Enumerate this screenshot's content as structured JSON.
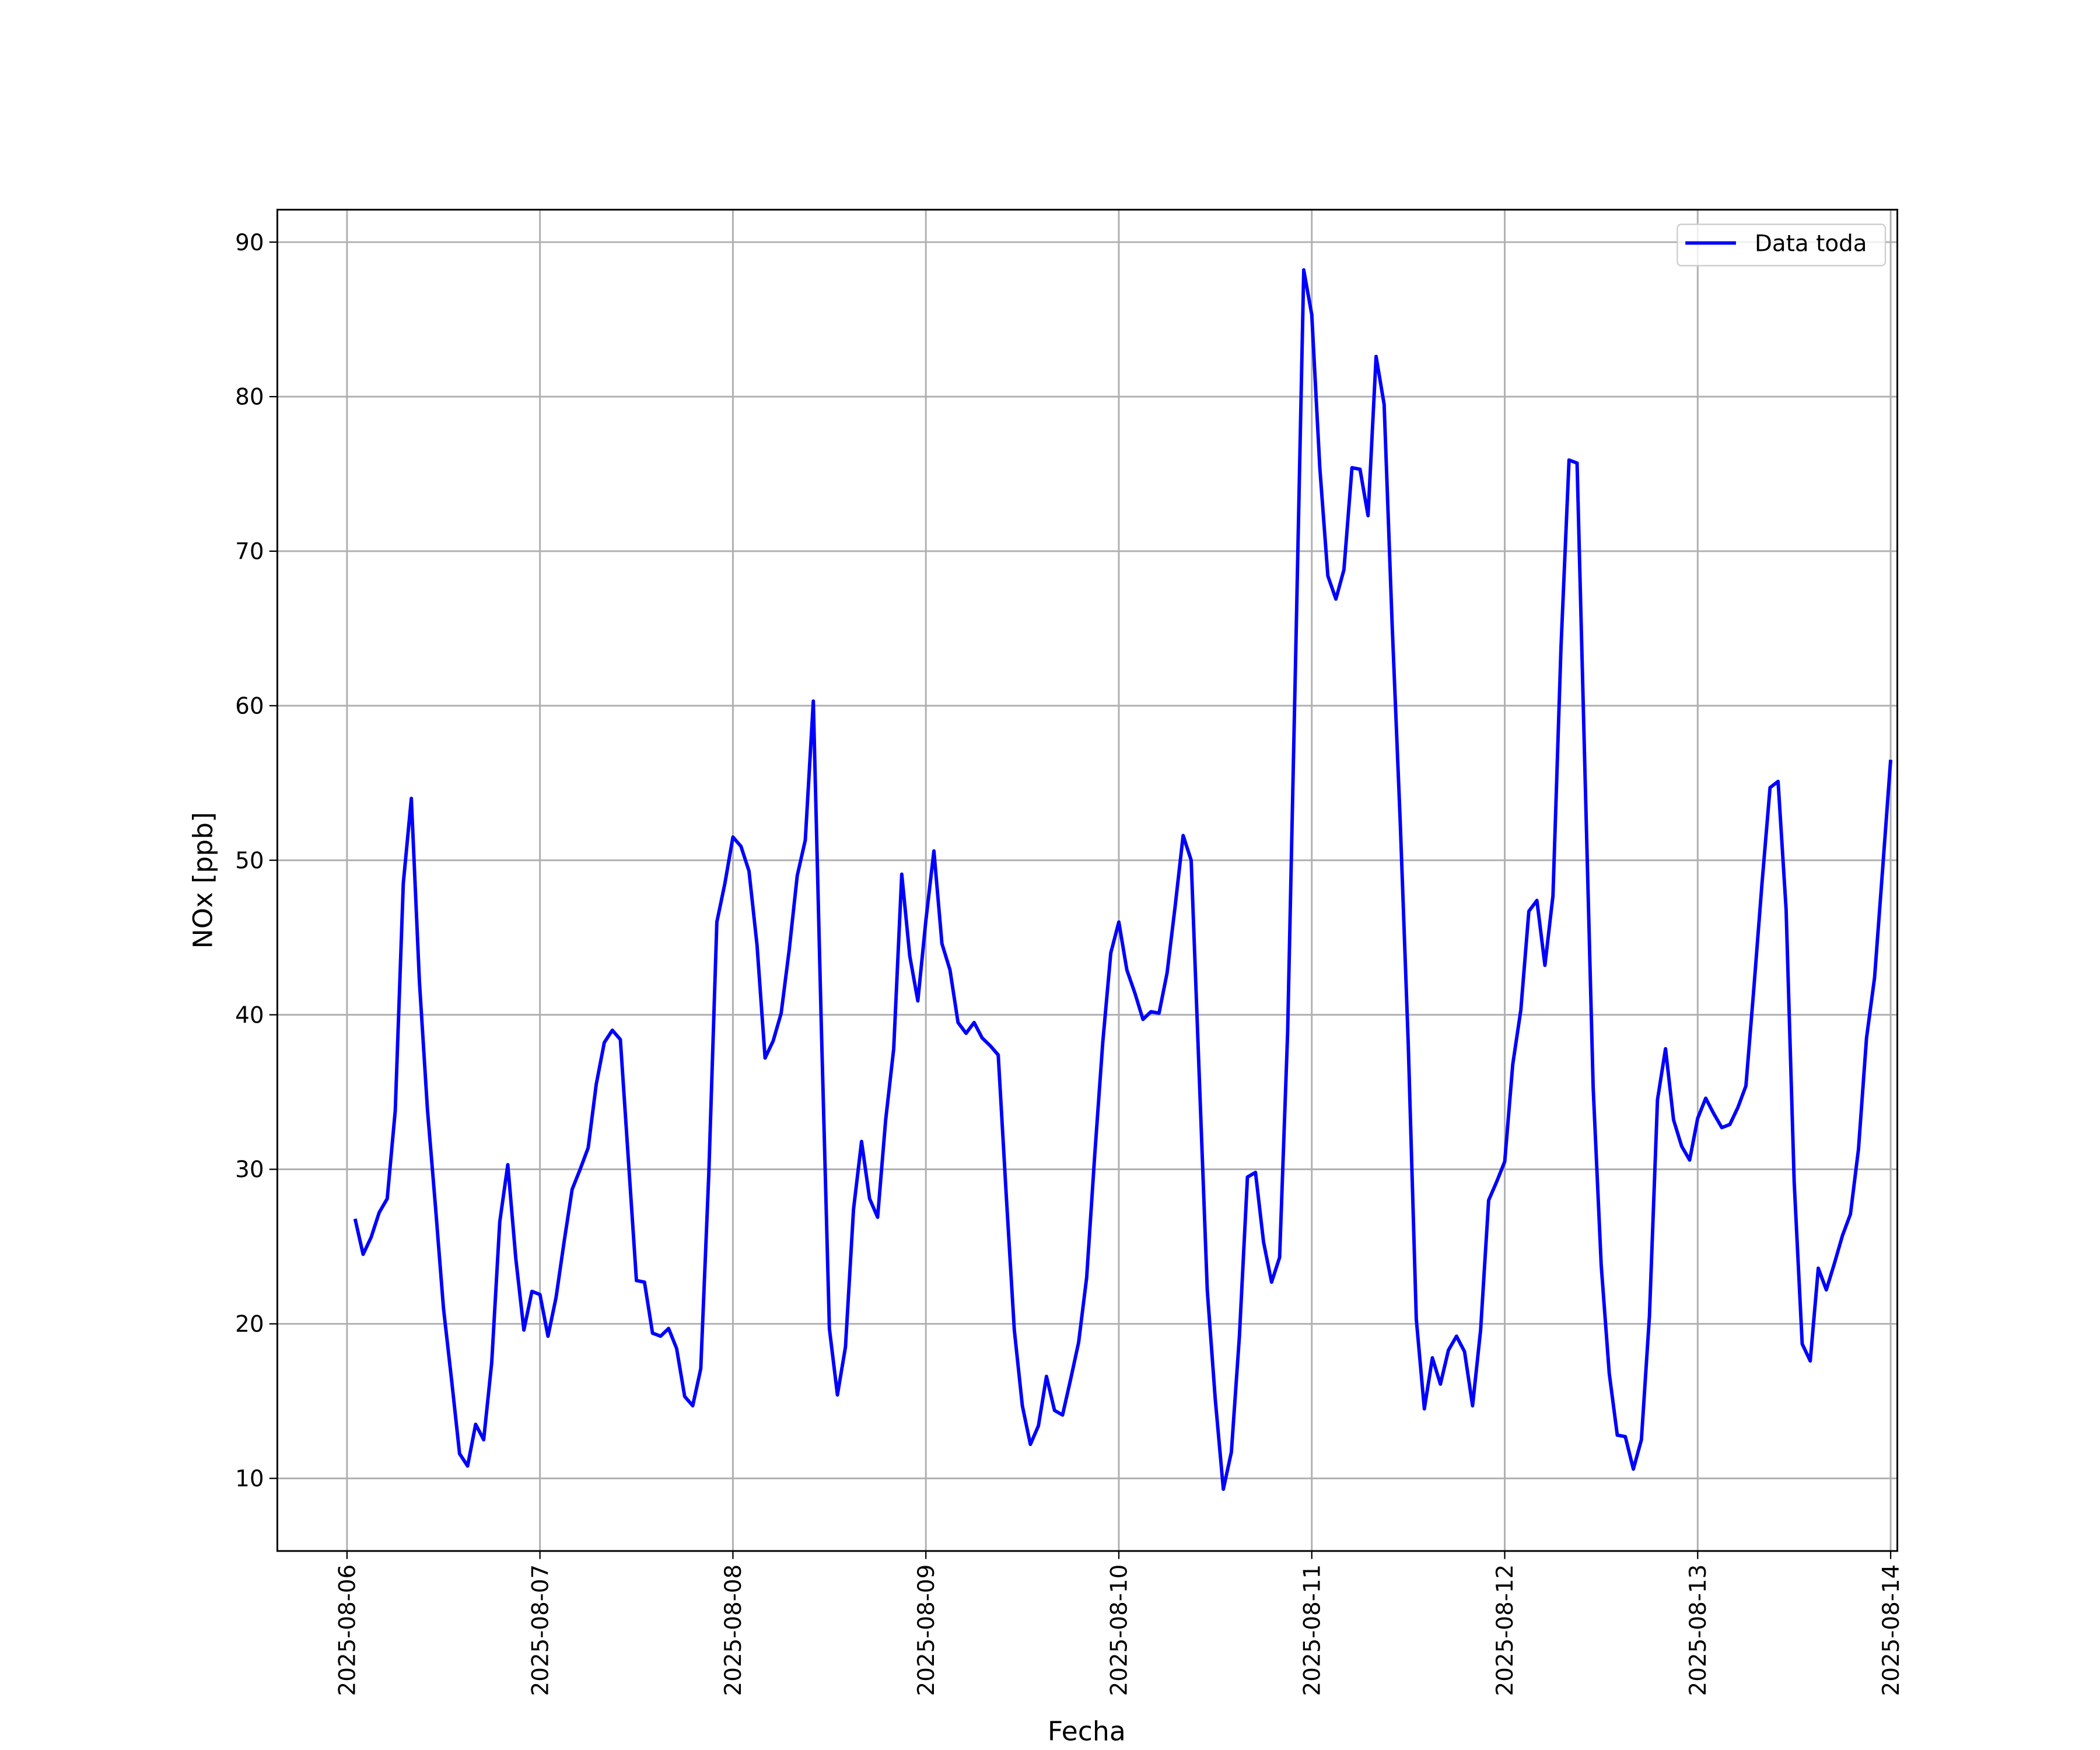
{
  "chart_data": {
    "type": "line",
    "x_label": "Fecha",
    "y_label": "NOx [ppb]",
    "xlim": [
      "2025-08-05 15:20",
      "2025-08-14 00:50"
    ],
    "xticks": [
      "2025-08-06",
      "2025-08-07",
      "2025-08-08",
      "2025-08-09",
      "2025-08-10",
      "2025-08-11",
      "2025-08-12",
      "2025-08-13",
      "2025-08-14"
    ],
    "ylim": [
      5.3,
      92.1
    ],
    "yticks": [
      10,
      20,
      30,
      40,
      50,
      60,
      70,
      80,
      90
    ],
    "grid": true,
    "legend": "upper right",
    "x": [
      "2025-08-06 01:00",
      "2025-08-06 02:00",
      "2025-08-06 03:00",
      "2025-08-06 04:00",
      "2025-08-06 05:00",
      "2025-08-06 06:00",
      "2025-08-06 07:00",
      "2025-08-06 08:00",
      "2025-08-06 09:00",
      "2025-08-06 10:00",
      "2025-08-06 11:00",
      "2025-08-06 12:00",
      "2025-08-06 13:00",
      "2025-08-06 14:00",
      "2025-08-06 15:00",
      "2025-08-06 16:00",
      "2025-08-06 17:00",
      "2025-08-06 18:00",
      "2025-08-06 19:00",
      "2025-08-06 20:00",
      "2025-08-06 21:00",
      "2025-08-06 22:00",
      "2025-08-06 23:00",
      "2025-08-07 00:00",
      "2025-08-07 01:00",
      "2025-08-07 02:00",
      "2025-08-07 03:00",
      "2025-08-07 04:00",
      "2025-08-07 05:00",
      "2025-08-07 06:00",
      "2025-08-07 07:00",
      "2025-08-07 08:00",
      "2025-08-07 09:00",
      "2025-08-07 10:00",
      "2025-08-07 11:00",
      "2025-08-07 12:00",
      "2025-08-07 13:00",
      "2025-08-07 14:00",
      "2025-08-07 15:00",
      "2025-08-07 16:00",
      "2025-08-07 17:00",
      "2025-08-07 18:00",
      "2025-08-07 19:00",
      "2025-08-07 20:00",
      "2025-08-07 21:00",
      "2025-08-07 22:00",
      "2025-08-07 23:00",
      "2025-08-08 00:00",
      "2025-08-08 01:00",
      "2025-08-08 02:00",
      "2025-08-08 03:00",
      "2025-08-08 04:00",
      "2025-08-08 05:00",
      "2025-08-08 06:00",
      "2025-08-08 07:00",
      "2025-08-08 08:00",
      "2025-08-08 09:00",
      "2025-08-08 10:00",
      "2025-08-08 11:00",
      "2025-08-08 12:00",
      "2025-08-08 13:00",
      "2025-08-08 14:00",
      "2025-08-08 15:00",
      "2025-08-08 16:00",
      "2025-08-08 17:00",
      "2025-08-08 18:00",
      "2025-08-08 19:00",
      "2025-08-08 20:00",
      "2025-08-08 21:00",
      "2025-08-08 22:00",
      "2025-08-08 23:00",
      "2025-08-09 00:00",
      "2025-08-09 01:00",
      "2025-08-09 02:00",
      "2025-08-09 03:00",
      "2025-08-09 04:00",
      "2025-08-09 05:00",
      "2025-08-09 06:00",
      "2025-08-09 07:00",
      "2025-08-09 08:00",
      "2025-08-09 09:00",
      "2025-08-09 10:00",
      "2025-08-09 11:00",
      "2025-08-09 12:00",
      "2025-08-09 13:00",
      "2025-08-09 14:00",
      "2025-08-09 15:00",
      "2025-08-09 16:00",
      "2025-08-09 17:00",
      "2025-08-09 18:00",
      "2025-08-09 19:00",
      "2025-08-09 20:00",
      "2025-08-09 21:00",
      "2025-08-09 22:00",
      "2025-08-09 23:00",
      "2025-08-10 00:00",
      "2025-08-10 01:00",
      "2025-08-10 02:00",
      "2025-08-10 03:00",
      "2025-08-10 04:00",
      "2025-08-10 05:00",
      "2025-08-10 06:00",
      "2025-08-10 07:00",
      "2025-08-10 08:00",
      "2025-08-10 09:00",
      "2025-08-10 10:00",
      "2025-08-10 11:00",
      "2025-08-10 12:00",
      "2025-08-10 13:00",
      "2025-08-10 14:00",
      "2025-08-10 15:00",
      "2025-08-10 16:00",
      "2025-08-10 17:00",
      "2025-08-10 18:00",
      "2025-08-10 19:00",
      "2025-08-10 20:00",
      "2025-08-10 21:00",
      "2025-08-10 22:00",
      "2025-08-10 23:00",
      "2025-08-11 00:00",
      "2025-08-11 01:00",
      "2025-08-11 02:00",
      "2025-08-11 03:00",
      "2025-08-11 04:00",
      "2025-08-11 05:00",
      "2025-08-11 06:00",
      "2025-08-11 07:00",
      "2025-08-11 08:00",
      "2025-08-11 09:00",
      "2025-08-11 10:00",
      "2025-08-11 11:00",
      "2025-08-11 12:00",
      "2025-08-11 13:00",
      "2025-08-11 14:00",
      "2025-08-11 15:00",
      "2025-08-11 16:00",
      "2025-08-11 17:00",
      "2025-08-11 18:00",
      "2025-08-11 19:00",
      "2025-08-11 20:00",
      "2025-08-11 21:00",
      "2025-08-11 22:00",
      "2025-08-11 23:00",
      "2025-08-12 00:00",
      "2025-08-12 01:00",
      "2025-08-12 02:00",
      "2025-08-12 03:00",
      "2025-08-12 04:00",
      "2025-08-12 05:00",
      "2025-08-12 06:00",
      "2025-08-12 07:00",
      "2025-08-12 08:00",
      "2025-08-12 09:00",
      "2025-08-12 10:00",
      "2025-08-12 11:00",
      "2025-08-12 12:00",
      "2025-08-12 13:00",
      "2025-08-12 14:00",
      "2025-08-12 15:00",
      "2025-08-12 16:00",
      "2025-08-12 17:00",
      "2025-08-12 18:00",
      "2025-08-12 19:00",
      "2025-08-12 20:00",
      "2025-08-12 21:00",
      "2025-08-12 22:00",
      "2025-08-12 23:00",
      "2025-08-13 00:00",
      "2025-08-13 01:00",
      "2025-08-13 02:00",
      "2025-08-13 03:00",
      "2025-08-13 04:00",
      "2025-08-13 05:00",
      "2025-08-13 06:00",
      "2025-08-13 07:00",
      "2025-08-13 08:00",
      "2025-08-13 09:00",
      "2025-08-13 10:00",
      "2025-08-13 11:00",
      "2025-08-13 12:00",
      "2025-08-13 13:00",
      "2025-08-13 14:00",
      "2025-08-13 15:00",
      "2025-08-13 16:00",
      "2025-08-13 17:00",
      "2025-08-13 18:00",
      "2025-08-13 19:00",
      "2025-08-13 20:00",
      "2025-08-13 21:00",
      "2025-08-13 22:00",
      "2025-08-13 23:00",
      "2025-08-14 00:00"
    ],
    "series": [
      {
        "name": "Data toda",
        "color": "#0000ff",
        "values": [
          26.8,
          24.5,
          25.6,
          27.2,
          28.1,
          33.8,
          48.5,
          54.0,
          42.2,
          33.9,
          27.6,
          21.0,
          16.4,
          11.6,
          10.8,
          13.5,
          12.5,
          17.5,
          26.6,
          30.3,
          24.2,
          19.6,
          22.1,
          21.9,
          19.2,
          21.7,
          25.3,
          28.7,
          30.0,
          31.4,
          35.5,
          38.2,
          39.0,
          38.4,
          30.6,
          22.8,
          22.7,
          19.4,
          19.2,
          19.7,
          18.4,
          15.3,
          14.7,
          17.1,
          29.7,
          46.0,
          48.5,
          51.5,
          50.9,
          49.3,
          44.5,
          37.2,
          38.3,
          40.1,
          44.2,
          49.0,
          51.3,
          60.3,
          39.2,
          19.7,
          15.4,
          18.5,
          27.4,
          31.8,
          28.1,
          26.9,
          33.2,
          37.8,
          49.1,
          43.8,
          40.9,
          46.1,
          50.6,
          44.6,
          42.9,
          39.5,
          38.8,
          39.5,
          38.5,
          38.0,
          37.4,
          28.3,
          19.6,
          14.7,
          12.2,
          13.4,
          16.6,
          14.4,
          14.1,
          16.4,
          18.8,
          23.0,
          30.9,
          38.2,
          44.0,
          46.0,
          42.9,
          41.4,
          39.7,
          40.2,
          40.1,
          42.7,
          47.0,
          51.6,
          50.0,
          36.1,
          22.2,
          15.1,
          9.3,
          11.7,
          19.2,
          29.5,
          29.8,
          25.3,
          22.7,
          24.3,
          38.9,
          63.3,
          88.2,
          85.3,
          75.4,
          68.4,
          66.9,
          68.8,
          75.4,
          75.3,
          72.3,
          82.6,
          79.5,
          65.2,
          52.5,
          38.1,
          20.3,
          14.5,
          17.8,
          16.1,
          18.3,
          19.2,
          18.2,
          14.7,
          19.6,
          28.0,
          29.2,
          30.5,
          36.8,
          40.3,
          46.7,
          47.4,
          43.2,
          47.7,
          63.8,
          75.9,
          75.7,
          55.3,
          35.3,
          23.8,
          16.8,
          12.8,
          12.7,
          10.6,
          12.5,
          20.5,
          34.5,
          37.8,
          33.2,
          31.5,
          30.6,
          33.3,
          34.6,
          33.6,
          32.7,
          32.9,
          34.0,
          35.4,
          41.8,
          48.5,
          54.7,
          55.1,
          46.8,
          29.2,
          18.7,
          17.6,
          23.6,
          22.2,
          23.9,
          25.7,
          27.1,
          31.3,
          38.5,
          42.4,
          49.4,
          56.5
        ]
      }
    ]
  }
}
